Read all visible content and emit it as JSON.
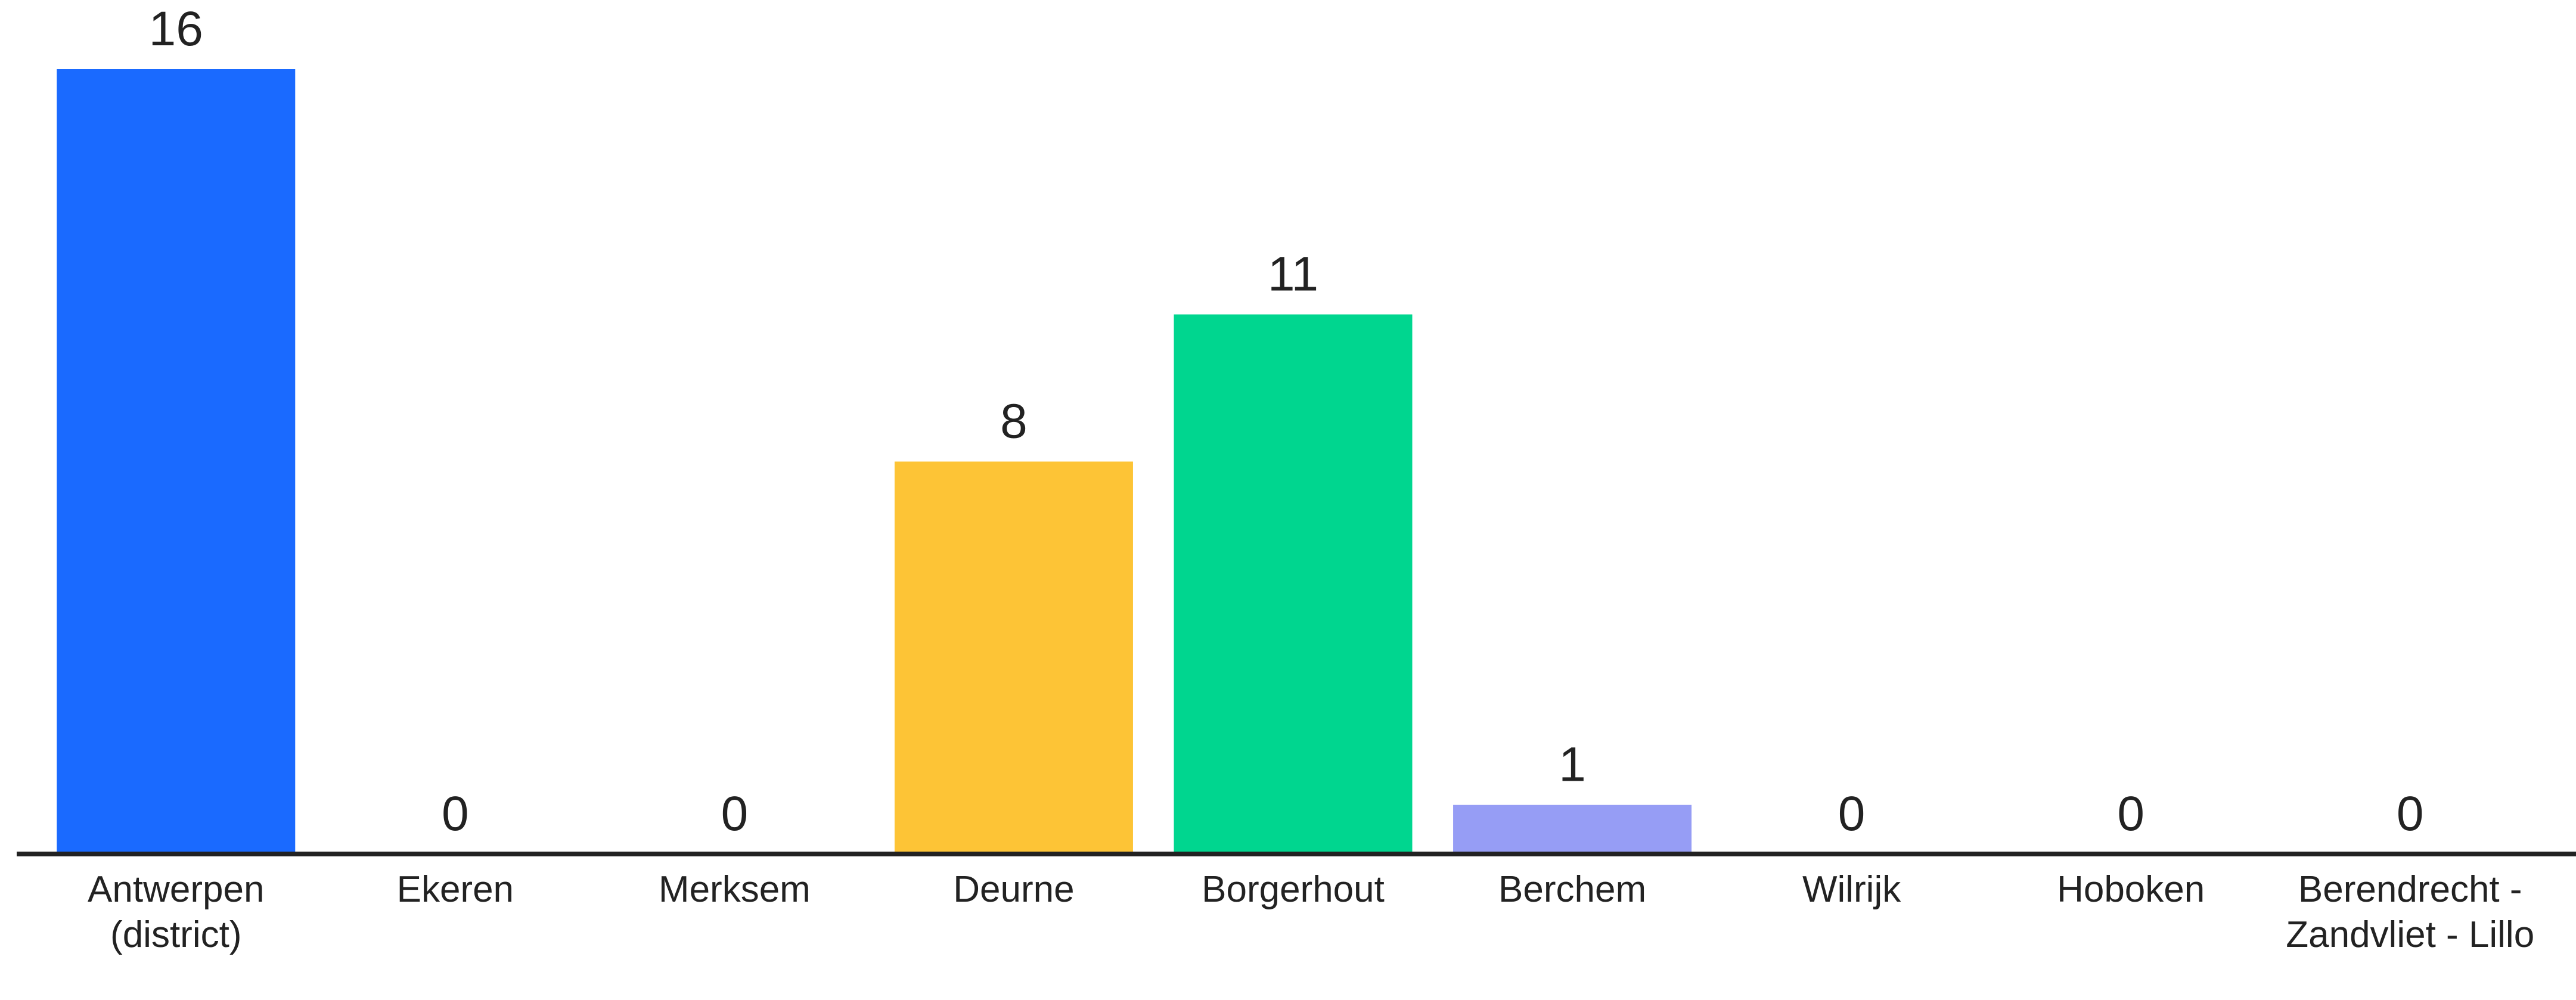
{
  "chart_data": {
    "type": "bar",
    "categories": [
      "Antwerpen (district)",
      "Ekeren",
      "Merksem",
      "Deurne",
      "Borgerhout",
      "Berchem",
      "Wilrijk",
      "Hoboken",
      "Berendrecht - Zandvliet - Lillo"
    ],
    "values": [
      16,
      0,
      0,
      8,
      11,
      1,
      0,
      0,
      0
    ],
    "colors": [
      "#1a6aff",
      null,
      null,
      "#fdc436",
      "#00d68f",
      "#969df5",
      null,
      null,
      null
    ],
    "ylim": [
      0,
      16
    ]
  }
}
